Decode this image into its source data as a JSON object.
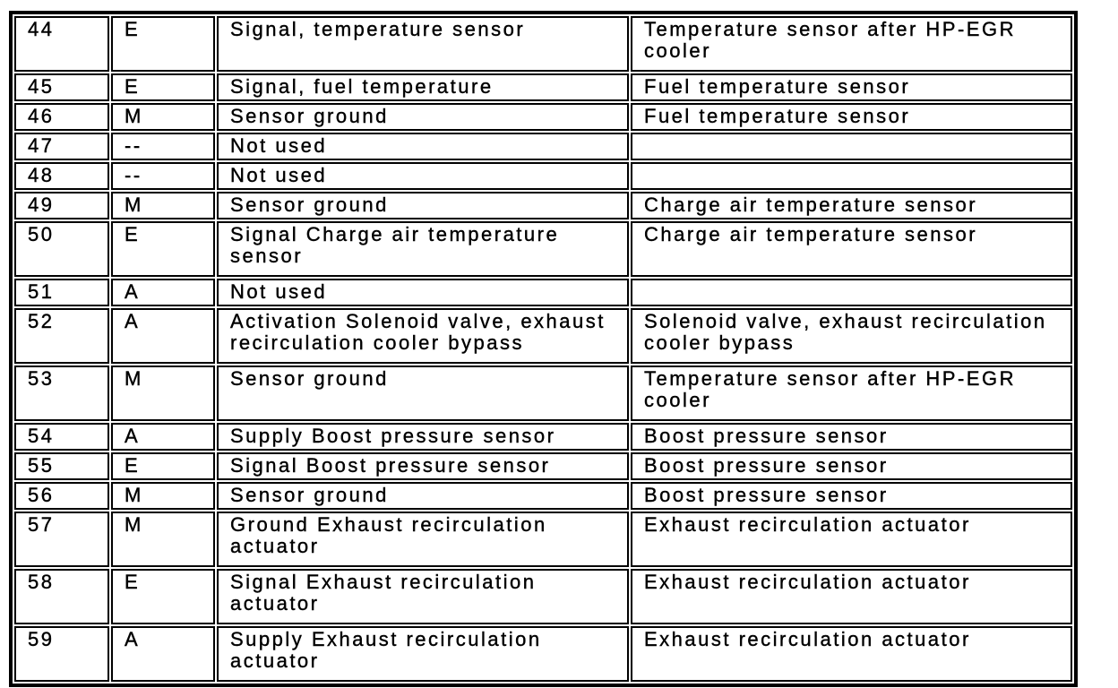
{
  "document": {
    "kind": "pin-assignment-table",
    "colors": {
      "background": "#ffffff",
      "text": "#000000",
      "border": "#000000"
    }
  },
  "table": {
    "rows": [
      {
        "pin": "44",
        "type": "E",
        "description": "Signal, temperature sensor",
        "component": "Temperature sensor after HP-EGR cooler"
      },
      {
        "pin": "45",
        "type": "E",
        "description": "Signal, fuel temperature",
        "component": "Fuel temperature sensor"
      },
      {
        "pin": "46",
        "type": "M",
        "description": "Sensor ground",
        "component": "Fuel temperature sensor"
      },
      {
        "pin": "47",
        "type": "--",
        "description": "Not used",
        "component": ""
      },
      {
        "pin": "48",
        "type": "--",
        "description": "Not used",
        "component": ""
      },
      {
        "pin": "49",
        "type": "M",
        "description": "Sensor ground",
        "component": "Charge air temperature sensor"
      },
      {
        "pin": "50",
        "type": "E",
        "description": "Signal Charge air temperature sensor",
        "component": "Charge air temperature sensor"
      },
      {
        "pin": "51",
        "type": "A",
        "description": "Not used",
        "component": ""
      },
      {
        "pin": "52",
        "type": "A",
        "description": "Activation Solenoid valve, exhaust recirculation cooler bypass",
        "component": "Solenoid valve, exhaust recirculation cooler bypass"
      },
      {
        "pin": "53",
        "type": "M",
        "description": "Sensor ground",
        "component": "Temperature sensor after HP-EGR cooler"
      },
      {
        "pin": "54",
        "type": "A",
        "description": "Supply Boost pressure sensor",
        "component": "Boost pressure sensor"
      },
      {
        "pin": "55",
        "type": "E",
        "description": "Signal Boost pressure sensor",
        "component": "Boost pressure sensor"
      },
      {
        "pin": "56",
        "type": "M",
        "description": "Sensor ground",
        "component": "Boost pressure sensor"
      },
      {
        "pin": "57",
        "type": "M",
        "description": "Ground Exhaust recirculation actuator",
        "component": "Exhaust recirculation actuator"
      },
      {
        "pin": "58",
        "type": "E",
        "description": "Signal Exhaust recirculation actuator",
        "component": "Exhaust recirculation actuator"
      },
      {
        "pin": "59",
        "type": "A",
        "description": "Supply Exhaust recirculation actuator",
        "component": "Exhaust recirculation actuator"
      }
    ]
  }
}
